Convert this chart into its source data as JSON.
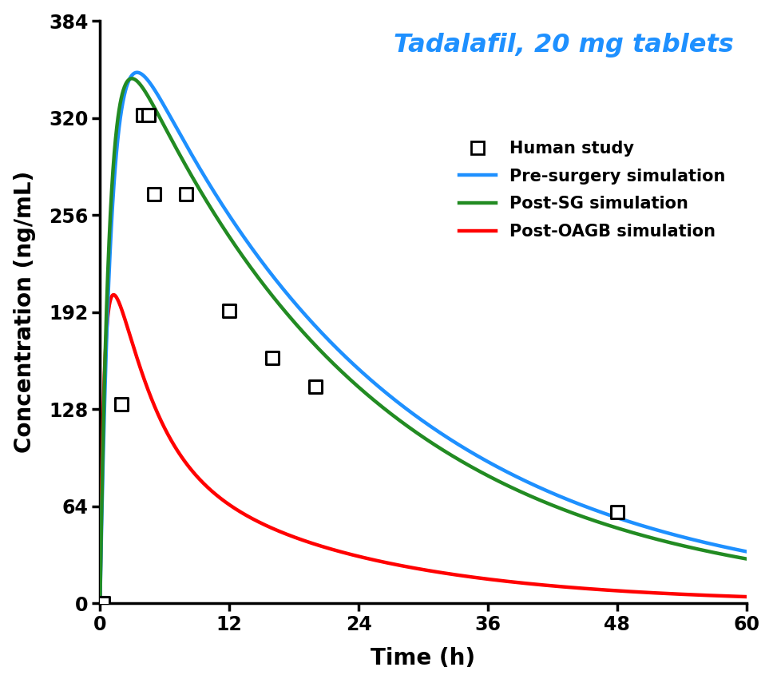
{
  "title": "Tadalafil, 20 mg tablets",
  "title_color": "#1E90FF",
  "xlabel": "Time (h)",
  "ylabel": "Concentration (ng/mL)",
  "xlim": [
    0,
    60
  ],
  "ylim": [
    0,
    384
  ],
  "xticks": [
    0,
    12,
    24,
    36,
    48,
    60
  ],
  "yticks": [
    0,
    64,
    128,
    192,
    256,
    320,
    384
  ],
  "human_study_x": [
    0,
    0.25,
    1,
    2,
    4,
    8,
    10,
    16,
    20,
    48
  ],
  "human_study_y": [
    0,
    0,
    131,
    322,
    322,
    265,
    193,
    162,
    143,
    60
  ],
  "pre_surgery_color": "#1E90FF",
  "post_sg_color": "#228B22",
  "post_oagb_color": "#FF0000",
  "line_width": 3.2,
  "marker_size": 11,
  "legend_entries": [
    "Human study",
    "Pre-surgery simulation",
    "Post-SG simulation",
    "Post-OAGB simulation"
  ],
  "font_size_axis_label": 20,
  "font_size_tick": 17,
  "font_size_title": 23,
  "font_size_legend": 15
}
